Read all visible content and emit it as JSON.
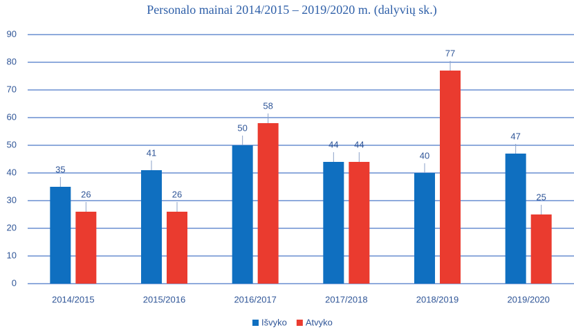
{
  "chart_data": {
    "type": "bar",
    "title": "Personalo mainai 2014/2015 – 2019/2020 m. (dalyvių sk.)",
    "categories": [
      "2014/2015",
      "2015/2016",
      "2016/2017",
      "2017/2018",
      "2018/2019",
      "2019/2020"
    ],
    "series": [
      {
        "name": "Išvyko",
        "color": "#0f6fc0",
        "values": [
          35,
          41,
          50,
          44,
          40,
          47
        ]
      },
      {
        "name": "Atvyko",
        "color": "#ea3b2f",
        "values": [
          26,
          26,
          58,
          44,
          77,
          25
        ]
      }
    ],
    "ylim": [
      0,
      90
    ],
    "yticks": [
      0,
      10,
      20,
      30,
      40,
      50,
      60,
      70,
      80,
      90
    ],
    "grid": true,
    "legend": "bottom"
  }
}
